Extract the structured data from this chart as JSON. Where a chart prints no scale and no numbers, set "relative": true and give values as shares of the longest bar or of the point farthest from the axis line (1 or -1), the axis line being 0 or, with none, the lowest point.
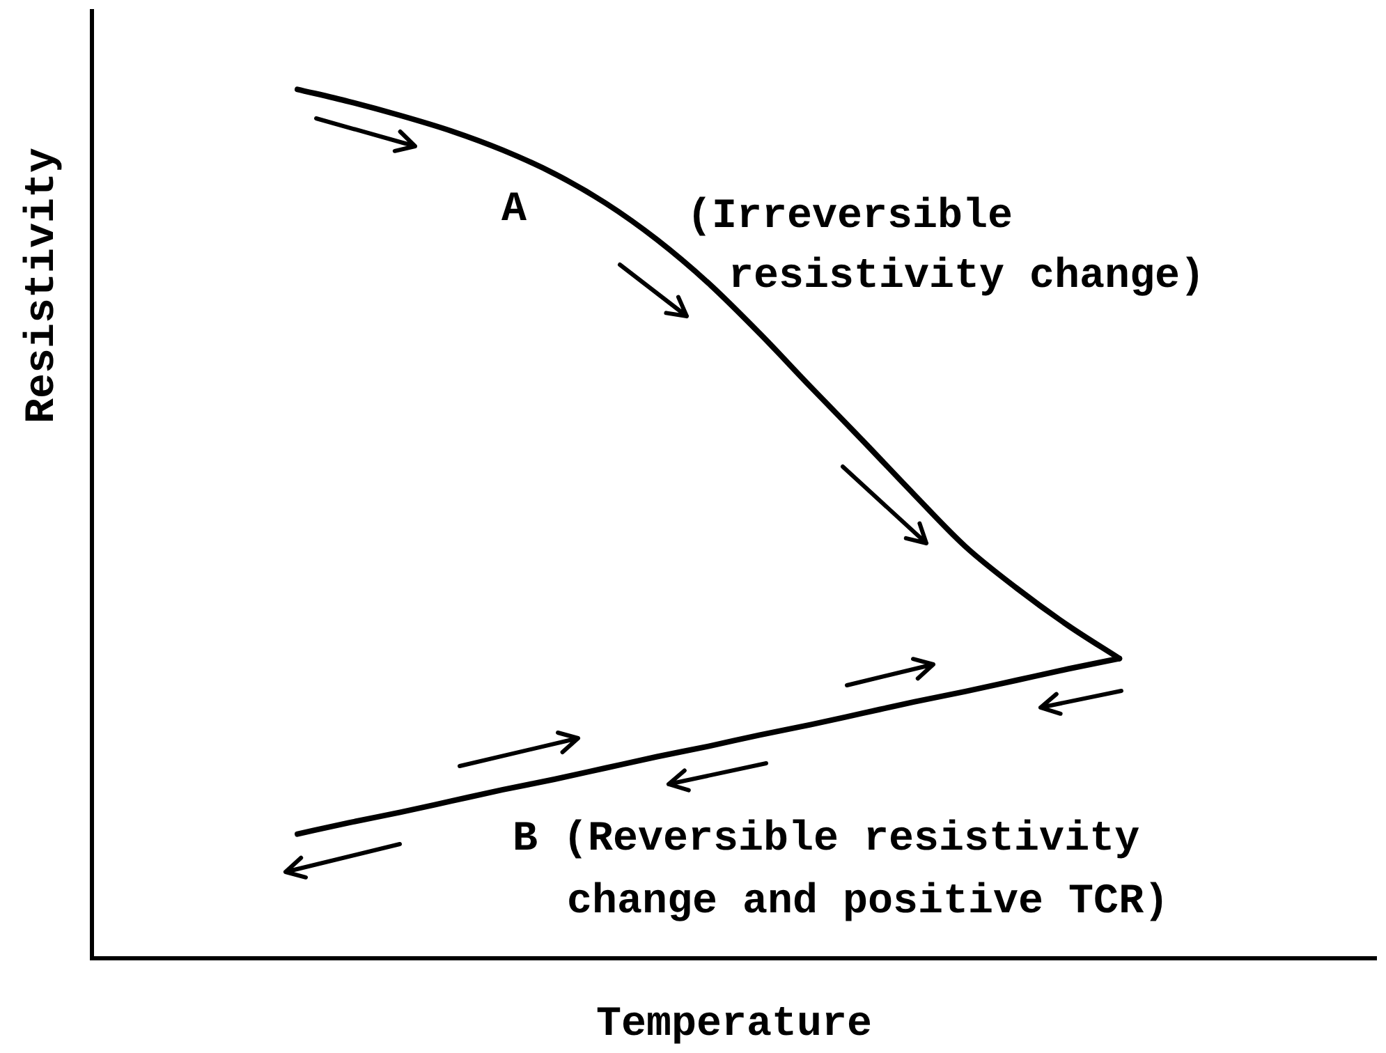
{
  "chart_data": {
    "type": "line",
    "xlabel": "Temperature",
    "ylabel": "Resistivity",
    "relative": true,
    "marker": "none",
    "line_style": "solid",
    "categories": [
      null,
      null,
      null,
      null,
      null,
      null,
      null,
      null,
      null,
      null,
      null,
      null,
      null,
      null,
      null,
      null,
      null,
      null,
      null,
      null,
      null,
      null,
      null,
      null,
      null,
      null
    ],
    "series": [
      {
        "color": "#000000",
        "values": [
          null,
          null,
          null,
          null,
          1,
          0.986,
          0.97,
          0.952,
          0.93,
          0.903,
          0.869,
          0.827,
          0.777,
          0.719,
          0.657,
          0.596,
          0.534,
          0.474,
          0.426,
          0.383,
          0.345,
          null,
          null,
          null,
          null,
          null
        ]
      },
      {
        "color": "#000000",
        "values": [
          null,
          null,
          null,
          null,
          0.143,
          0.156,
          0.168,
          0.181,
          0.194,
          0.206,
          0.219,
          0.232,
          0.244,
          0.257,
          0.269,
          0.282,
          0.295,
          0.307,
          0.32,
          0.333,
          0.345,
          null,
          null,
          null,
          null,
          null
        ]
      }
    ],
    "annotations": [
      "A",
      "(Irreversible resistivity change)",
      "B (Reversible resistivity change and positive TCR)"
    ]
  }
}
